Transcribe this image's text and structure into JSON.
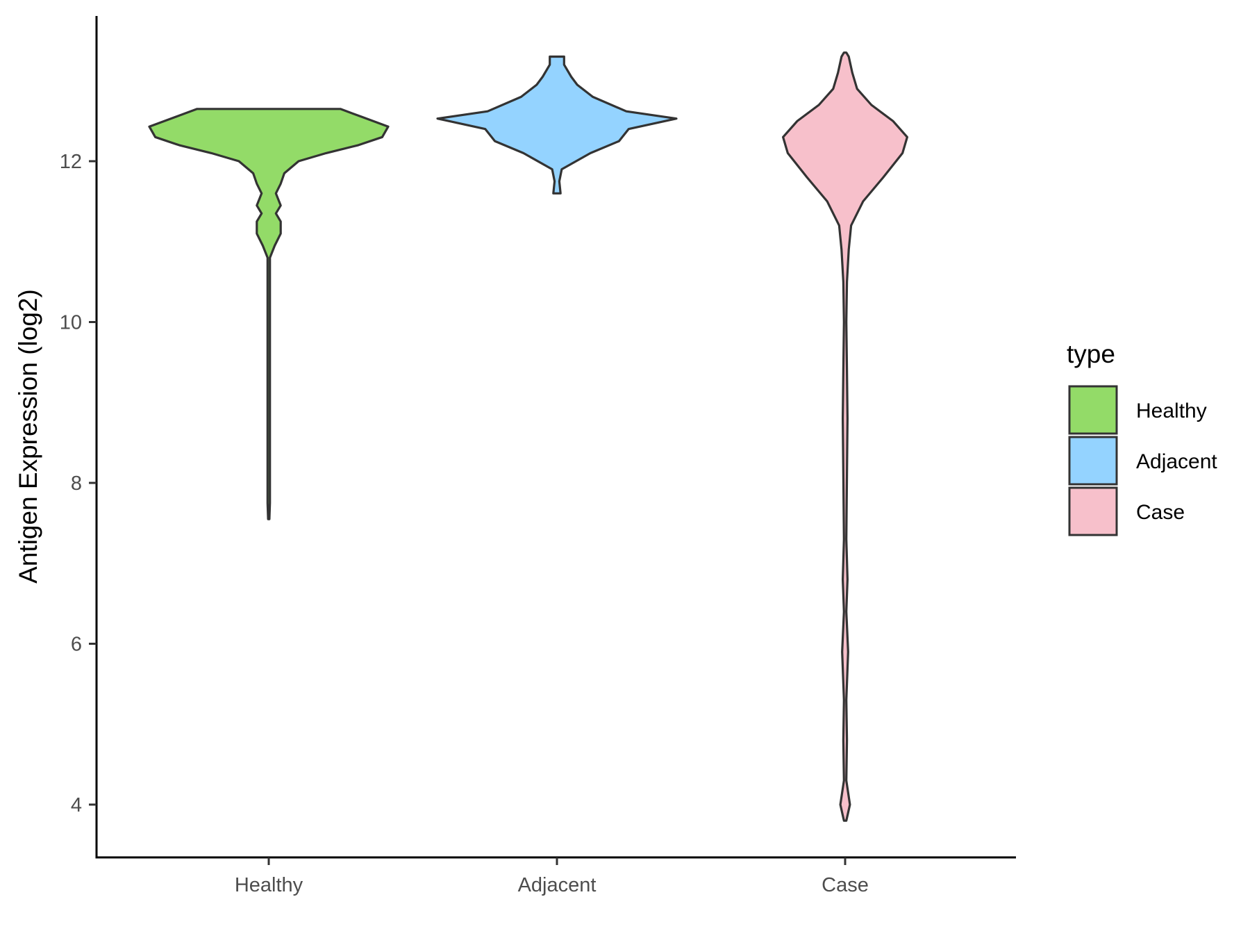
{
  "chart_data": {
    "type": "violin",
    "ylabel": "Antigen Expression (log2)",
    "xlabel": "",
    "categories": [
      "Healthy",
      "Adjacent",
      "Case"
    ],
    "yticks": [
      4,
      6,
      8,
      10,
      12
    ],
    "ylim": [
      3.3,
      13.8
    ],
    "legend": {
      "title": "type",
      "position": "right",
      "entries": [
        "Healthy",
        "Adjacent",
        "Case"
      ]
    },
    "grid": false,
    "series": [
      {
        "category": "Healthy",
        "color": "#93DB68",
        "density": [
          [
            7.55,
            0.005
          ],
          [
            7.75,
            0.01
          ],
          [
            8.0,
            0.01
          ],
          [
            9.0,
            0.01
          ],
          [
            10.0,
            0.01
          ],
          [
            10.8,
            0.01
          ],
          [
            10.95,
            0.05
          ],
          [
            11.1,
            0.1
          ],
          [
            11.25,
            0.1
          ],
          [
            11.35,
            0.06
          ],
          [
            11.45,
            0.1
          ],
          [
            11.6,
            0.06
          ],
          [
            11.72,
            0.1
          ],
          [
            11.85,
            0.13
          ],
          [
            12.0,
            0.25
          ],
          [
            12.1,
            0.48
          ],
          [
            12.2,
            0.75
          ],
          [
            12.3,
            0.95
          ],
          [
            12.43,
            1.0
          ],
          [
            12.55,
            0.78
          ],
          [
            12.65,
            0.6
          ]
        ]
      },
      {
        "category": "Adjacent",
        "color": "#94D3FF",
        "density": [
          [
            11.6,
            0.03
          ],
          [
            11.75,
            0.02
          ],
          [
            11.9,
            0.04
          ],
          [
            12.1,
            0.28
          ],
          [
            12.25,
            0.52
          ],
          [
            12.4,
            0.6
          ],
          [
            12.53,
            1.0
          ],
          [
            12.62,
            0.58
          ],
          [
            12.8,
            0.3
          ],
          [
            12.95,
            0.17
          ],
          [
            13.05,
            0.12
          ],
          [
            13.2,
            0.06
          ],
          [
            13.3,
            0.06
          ]
        ]
      },
      {
        "category": "Case",
        "color": "#F7C0CB",
        "density": [
          [
            3.8,
            0.01
          ],
          [
            4.0,
            0.04
          ],
          [
            4.3,
            0.01
          ],
          [
            4.8,
            0.015
          ],
          [
            5.3,
            0.01
          ],
          [
            5.9,
            0.025
          ],
          [
            6.4,
            0.01
          ],
          [
            6.8,
            0.02
          ],
          [
            7.3,
            0.01
          ],
          [
            8.1,
            0.015
          ],
          [
            8.8,
            0.02
          ],
          [
            9.4,
            0.015
          ],
          [
            10.0,
            0.01
          ],
          [
            10.5,
            0.015
          ],
          [
            10.9,
            0.03
          ],
          [
            11.2,
            0.05
          ],
          [
            11.5,
            0.15
          ],
          [
            11.8,
            0.32
          ],
          [
            12.1,
            0.48
          ],
          [
            12.3,
            0.52
          ],
          [
            12.5,
            0.4
          ],
          [
            12.7,
            0.22
          ],
          [
            12.9,
            0.1
          ],
          [
            13.1,
            0.06
          ],
          [
            13.3,
            0.03
          ],
          [
            13.35,
            0.01
          ]
        ]
      }
    ]
  }
}
